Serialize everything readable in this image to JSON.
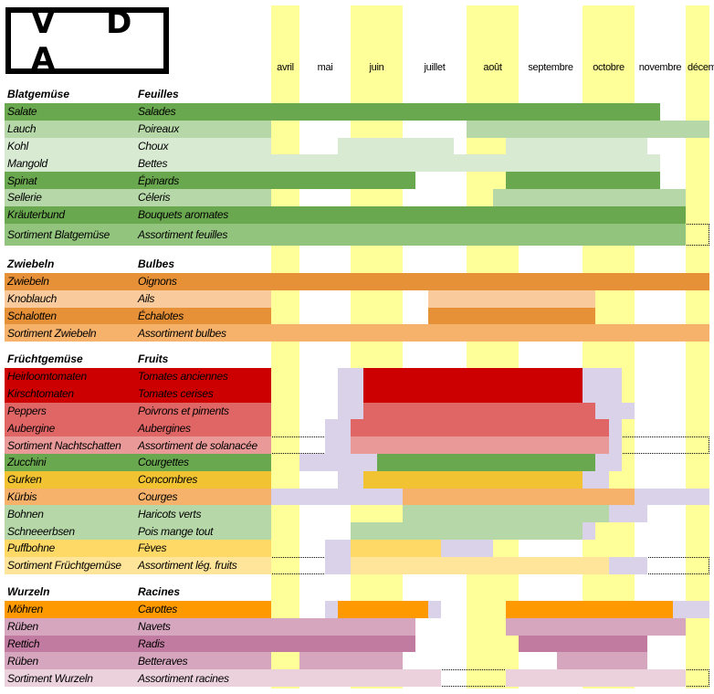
{
  "logo": {
    "text": "V D A"
  },
  "months": [
    "avril",
    "mai",
    "juin",
    "juillet",
    "août",
    "septembre",
    "octobre",
    "novembre",
    "décembre"
  ],
  "colors": {
    "month_highlight": "#ffff99",
    "secondary": "#d9d2e9"
  },
  "sections": [
    {
      "de": "Blatgemüse",
      "fr": "Feuilles",
      "rows": [
        {
          "de": "Salate",
          "fr": "Salades",
          "color": "#6aa84f",
          "segments": [
            [
              0,
              7.5,
              "m"
            ]
          ]
        },
        {
          "de": "Lauch",
          "fr": "Poireaux",
          "color": "#b6d7a8",
          "segments": [
            [
              4,
              8.5,
              "m"
            ]
          ]
        },
        {
          "de": "Kohl",
          "fr": "Choux",
          "color": "#d9ead3",
          "segments": [
            [
              1.75,
              3.8,
              "m"
            ],
            [
              4.75,
              7.25,
              "m"
            ]
          ]
        },
        {
          "de": "Mangold",
          "fr": "Bettes",
          "color": "#d9ead3",
          "segments": [
            [
              0,
              7.5,
              "m"
            ]
          ]
        },
        {
          "de": "Spinat",
          "fr": "Épinards",
          "color": "#6aa84f",
          "segments": [
            [
              0,
              3.2,
              "m"
            ],
            [
              4.75,
              7.5,
              "m"
            ]
          ]
        },
        {
          "de": "Sellerie",
          "fr": "Céleris",
          "color": "#b6d7a8",
          "segments": [
            [
              4.5,
              8,
              "m"
            ]
          ]
        },
        {
          "de": "Kräuterbund",
          "fr": "Bouquets aromates",
          "color": "#6aa84f",
          "segments": [
            [
              0,
              8,
              "m"
            ]
          ]
        },
        {
          "de": "Sortiment Blatgemüse",
          "fr": "Assortiment feuilles",
          "color": "#93c47d",
          "sortiment": true,
          "tall": true,
          "segments": [
            [
              0,
              8,
              "m"
            ]
          ]
        }
      ]
    },
    {
      "de": "Zwiebeln",
      "fr": "Bulbes",
      "rows": [
        {
          "de": "Zwiebeln",
          "fr": "Oignons",
          "color": "#e69138",
          "segments": [
            [
              0,
              8.5,
              "m"
            ]
          ]
        },
        {
          "de": "Knoblauch",
          "fr": "Ails",
          "color": "#f9cb9c",
          "segments": [
            [
              3.4,
              6.25,
              "m"
            ]
          ]
        },
        {
          "de": "Schalotten",
          "fr": "Échalotes",
          "color": "#e69138",
          "segments": [
            [
              3.4,
              6.25,
              "m"
            ]
          ]
        },
        {
          "de": "Sortiment Zwiebeln",
          "fr": "Assortiment bulbes",
          "color": "#f6b26b",
          "sortiment": true,
          "segments": [
            [
              0,
              8.5,
              "m"
            ]
          ]
        }
      ]
    },
    {
      "de": "Früchtgemüse",
      "fr": "Fruits",
      "rows": [
        {
          "de": "Heirloomtomaten",
          "fr": "Tomates anciennes",
          "color": "#cc0000",
          "segments": [
            [
              1.75,
              2.25,
              "s"
            ],
            [
              2.25,
              6,
              "m"
            ],
            [
              6,
              6.75,
              "s"
            ]
          ]
        },
        {
          "de": "Kirschtomaten",
          "fr": "Tomates cerises",
          "color": "#cc0000",
          "segments": [
            [
              1.75,
              2.25,
              "s"
            ],
            [
              2.25,
              6,
              "m"
            ],
            [
              6,
              6.75,
              "s"
            ]
          ]
        },
        {
          "de": "Peppers",
          "fr": "Poivrons et piments",
          "color": "#e06666",
          "segments": [
            [
              1.75,
              2.25,
              "s"
            ],
            [
              2.25,
              6.25,
              "m"
            ],
            [
              6.25,
              7,
              "s"
            ]
          ]
        },
        {
          "de": "Aubergine",
          "fr": "Aubergines",
          "color": "#e06666",
          "segments": [
            [
              1.5,
              2,
              "s"
            ],
            [
              2,
              6.5,
              "m"
            ],
            [
              6.5,
              6.75,
              "s"
            ]
          ]
        },
        {
          "de": "Sortiment Nachtschatten",
          "fr": "Assortiment de solanacée",
          "color": "#ea9999",
          "sortiment": true,
          "segments": [
            [
              1.5,
              2,
              "s"
            ],
            [
              2,
              6.5,
              "m"
            ],
            [
              6.5,
              6.75,
              "s"
            ]
          ]
        },
        {
          "de": "Zucchini",
          "fr": "Courgettes",
          "color": "#6aa84f",
          "segments": [
            [
              1,
              2.5,
              "s"
            ],
            [
              2.5,
              6.25,
              "m"
            ],
            [
              6.25,
              6.75,
              "s"
            ]
          ]
        },
        {
          "de": "Gurken",
          "fr": "Concombres",
          "color": "#f1c232",
          "segments": [
            [
              1.75,
              2.25,
              "s"
            ],
            [
              2.25,
              6,
              "m"
            ],
            [
              6,
              6.5,
              "s"
            ]
          ]
        },
        {
          "de": "Kürbis",
          "fr": "Courges",
          "color": "#f6b26b",
          "segments": [
            [
              0,
              3,
              "s"
            ],
            [
              3,
              7,
              "m"
            ],
            [
              7,
              8.5,
              "s"
            ]
          ]
        },
        {
          "de": "Bohnen",
          "fr": "Haricots verts",
          "color": "#b6d7a8",
          "segments": [
            [
              3,
              6.5,
              "m"
            ],
            [
              6.5,
              7.25,
              "s"
            ]
          ]
        },
        {
          "de": "Schneeerbsen",
          "fr": "Pois mange tout",
          "color": "#b6d7a8",
          "segments": [
            [
              2,
              6,
              "m"
            ],
            [
              6,
              6.25,
              "s"
            ]
          ]
        },
        {
          "de": "Puffbohne",
          "fr": "Fèves",
          "color": "#ffd966",
          "segments": [
            [
              1.5,
              2,
              "s"
            ],
            [
              2,
              3.6,
              "m"
            ],
            [
              3.6,
              4.5,
              "s"
            ]
          ]
        },
        {
          "de": "Sortiment Früchtgemüse",
          "fr": "Assortiment lég. fruits",
          "color": "#ffe599",
          "sortiment": true,
          "segments": [
            [
              1.5,
              2,
              "s"
            ],
            [
              2,
              6.5,
              "m"
            ],
            [
              6.5,
              7.25,
              "s"
            ]
          ]
        }
      ]
    },
    {
      "de": "Wurzeln",
      "fr": "Racines",
      "rows": [
        {
          "de": "Möhren",
          "fr": "Carottes",
          "color": "#ff9900",
          "segments": [
            [
              1.5,
              1.75,
              "s"
            ],
            [
              1.75,
              3.4,
              "m"
            ],
            [
              3.4,
              3.6,
              "s"
            ],
            [
              4.75,
              7.75,
              "m"
            ],
            [
              7.75,
              8.5,
              "s"
            ]
          ]
        },
        {
          "de": "Rüben",
          "fr": "Navets",
          "color": "#d5a6bd",
          "segments": [
            [
              0,
              3.2,
              "m"
            ],
            [
              4.75,
              8,
              "m"
            ]
          ]
        },
        {
          "de": "Rettich",
          "fr": "Radis",
          "color": "#c27ba0",
          "segments": [
            [
              0,
              3.2,
              "m"
            ],
            [
              5,
              7.25,
              "m"
            ]
          ]
        },
        {
          "de": "Rüben",
          "fr": "Betteraves",
          "color": "#d5a6bd",
          "segments": [
            [
              1,
              3,
              "m"
            ],
            [
              5.6,
              7.25,
              "m"
            ]
          ]
        },
        {
          "de": "Sortiment Wurzeln",
          "fr": "Assortiment racines",
          "color": "#ead1dc",
          "sortiment": true,
          "segments": [
            [
              0,
              3.6,
              "m"
            ],
            [
              4.75,
              8,
              "m"
            ]
          ]
        }
      ]
    }
  ]
}
